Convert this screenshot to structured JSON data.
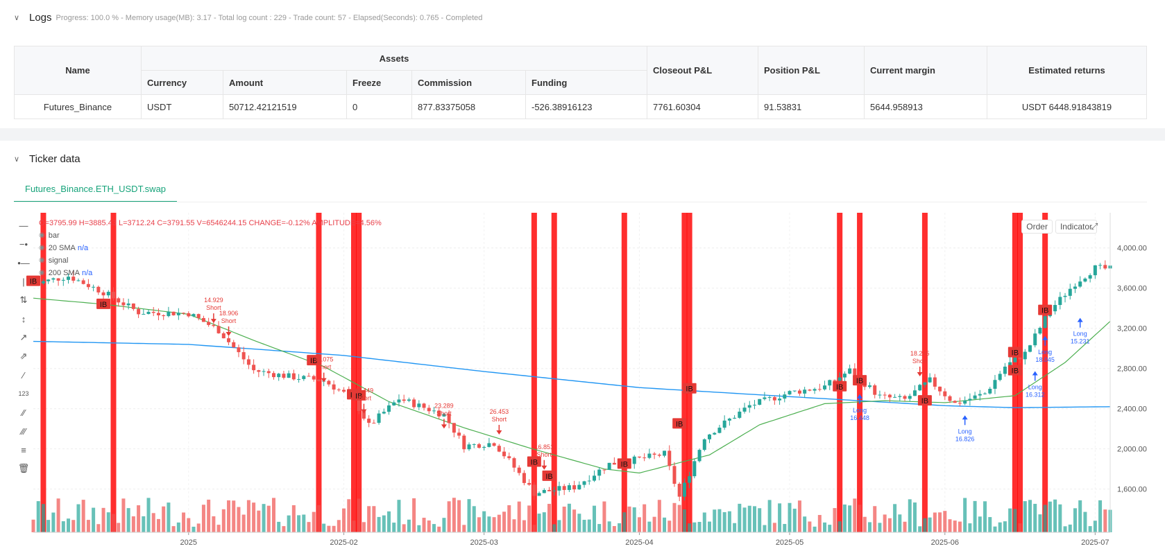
{
  "logs": {
    "title": "Logs",
    "status": "Progress: 100.0 %  -  Memory usage(MB): 3.17  -  Total log count : 229  -  Trade count:  57  -  Elapsed(Seconds): 0.765  -  Completed"
  },
  "assets_table": {
    "group_header": "Assets",
    "headers": {
      "name": "Name",
      "currency": "Currency",
      "amount": "Amount",
      "freeze": "Freeze",
      "commission": "Commission",
      "funding": "Funding",
      "closeout_pl": "Closeout P&L",
      "position_pl": "Position P&L",
      "current_margin": "Current margin",
      "estimated_returns": "Estimated returns"
    },
    "row": {
      "name": "Futures_Binance",
      "currency": "USDT",
      "amount": "50712.42121519",
      "freeze": "0",
      "commission": "877.83375058",
      "funding": "-526.38916123",
      "closeout_pl": "7761.60304",
      "position_pl": "91.53831",
      "current_margin": "5644.958913",
      "estimated_returns": "USDT 6448.91843819"
    }
  },
  "ticker": {
    "title": "Ticker data",
    "tab": "Futures_Binance.ETH_USDT.swap",
    "ohlc": "O=3795.99 H=3885.43 L=3712.24 C=3791.55 V=6546244.15 CHANGE=-0.12% AMPLITUDE=4.56%",
    "legend": [
      {
        "label": "bar",
        "value": ""
      },
      {
        "label": "20 SMA",
        "value": "n/a"
      },
      {
        "label": "signal",
        "value": ""
      },
      {
        "label": "200 SMA",
        "value": "n/a"
      }
    ],
    "buttons": {
      "order": "Order",
      "indicator": "Indicator"
    },
    "icons": [
      "crosshair-icon",
      "horizontal-line-icon",
      "horizontal-ray-icon",
      "vertical-line-icon",
      "vertical-ray-icon",
      "vertical-segment-icon",
      "trend-line-icon",
      "ray-icon",
      "segment-icon",
      "fib-icon",
      "parallel-channel-icon",
      "multi-channel-icon",
      "settings-lines-icon",
      "trash-icon"
    ]
  },
  "colors": {
    "up": "#26a69a",
    "down": "#ef5350",
    "sma20": "#4caf50",
    "sma200": "#2196f3",
    "signal": "#ff0000",
    "tab": "#16a37a"
  },
  "chart_data": {
    "type": "candlestick",
    "x_ticks": [
      "2025",
      "2025-02",
      "2025-03",
      "2025-04",
      "2025-05",
      "2025-06",
      "2025-07"
    ],
    "y_ticks": [
      "4,000.00",
      "3,600.00",
      "3,200.00",
      "2,800.00",
      "2,400.00",
      "2,000.00",
      "1,600.00"
    ],
    "ylim": [
      1170,
      4350
    ],
    "x_range": [
      "2024-12-01",
      "2025-07-04"
    ],
    "price_anchors": [
      [
        "2024-12-01",
        3640
      ],
      [
        "2024-12-08",
        3720
      ],
      [
        "2024-12-15",
        3560
      ],
      [
        "2024-12-22",
        3360
      ],
      [
        "2025-01-01",
        3350
      ],
      [
        "2025-01-07",
        3180
      ],
      [
        "2025-01-14",
        2780
      ],
      [
        "2025-01-21",
        2720
      ],
      [
        "2025-01-28",
        2680
      ],
      [
        "2025-02-03",
        2490
      ],
      [
        "2025-02-06",
        2230
      ],
      [
        "2025-02-12",
        2500
      ],
      [
        "2025-02-21",
        2340
      ],
      [
        "2025-02-25",
        2030
      ],
      [
        "2025-03-03",
        2060
      ],
      [
        "2025-03-06",
        1880
      ],
      [
        "2025-03-11",
        1560
      ],
      [
        "2025-03-19",
        1620
      ],
      [
        "2025-03-26",
        1850
      ],
      [
        "2025-04-01",
        1900
      ],
      [
        "2025-04-06",
        1950
      ],
      [
        "2025-04-09",
        1520
      ],
      [
        "2025-04-14",
        2120
      ],
      [
        "2025-04-23",
        2430
      ],
      [
        "2025-05-01",
        2560
      ],
      [
        "2025-05-08",
        2620
      ],
      [
        "2025-05-13",
        2780
      ],
      [
        "2025-05-19",
        2520
      ],
      [
        "2025-05-24",
        2490
      ],
      [
        "2025-05-29",
        2680
      ],
      [
        "2025-06-03",
        2450
      ],
      [
        "2025-06-09",
        2550
      ],
      [
        "2025-06-13",
        2820
      ],
      [
        "2025-06-17",
        2950
      ],
      [
        "2025-06-22",
        3380
      ],
      [
        "2025-06-27",
        3650
      ],
      [
        "2025-07-01",
        3800
      ],
      [
        "2025-07-04",
        3790
      ]
    ],
    "sma20_anchors": [
      [
        "2024-12-01",
        3500
      ],
      [
        "2024-12-15",
        3440
      ],
      [
        "2025-01-01",
        3340
      ],
      [
        "2025-01-14",
        3080
      ],
      [
        "2025-01-28",
        2820
      ],
      [
        "2025-02-10",
        2470
      ],
      [
        "2025-02-25",
        2210
      ],
      [
        "2025-03-10",
        2010
      ],
      [
        "2025-03-25",
        1800
      ],
      [
        "2025-04-01",
        1760
      ],
      [
        "2025-04-15",
        1940
      ],
      [
        "2025-04-25",
        2240
      ],
      [
        "2025-05-08",
        2450
      ],
      [
        "2025-05-20",
        2480
      ],
      [
        "2025-06-01",
        2460
      ],
      [
        "2025-06-15",
        2530
      ],
      [
        "2025-06-25",
        2860
      ],
      [
        "2025-07-04",
        3270
      ]
    ],
    "sma200_anchors": [
      [
        "2024-12-01",
        3070
      ],
      [
        "2025-01-01",
        3040
      ],
      [
        "2025-02-01",
        2930
      ],
      [
        "2025-03-01",
        2770
      ],
      [
        "2025-04-01",
        2610
      ],
      [
        "2025-05-01",
        2520
      ],
      [
        "2025-06-01",
        2430
      ],
      [
        "2025-06-15",
        2410
      ],
      [
        "2025-07-04",
        2420
      ]
    ],
    "signal_bars": [
      "2024-12-03",
      "2024-12-17",
      "2025-01-27",
      "2025-02-03",
      "2025-02-04",
      "2025-03-11",
      "2025-03-15",
      "2025-03-29",
      "2025-04-10",
      "2025-04-11",
      "2025-05-11",
      "2025-05-15",
      "2025-05-28",
      "2025-06-15",
      "2025-06-16",
      "2025-06-21"
    ],
    "ib_labels": [
      [
        "2024-12-01",
        3670
      ],
      [
        "2024-12-15",
        3440
      ],
      [
        "2025-01-26",
        2880
      ],
      [
        "2025-02-03",
        2540
      ],
      [
        "2025-02-04",
        2530
      ],
      [
        "2025-03-11",
        1870
      ],
      [
        "2025-03-14",
        1730
      ],
      [
        "2025-03-29",
        1850
      ],
      [
        "2025-04-09",
        2250
      ],
      [
        "2025-04-11",
        2600
      ],
      [
        "2025-05-11",
        2620
      ],
      [
        "2025-05-15",
        2680
      ],
      [
        "2025-05-28",
        2480
      ],
      [
        "2025-06-15",
        2780
      ],
      [
        "2025-06-15",
        2960
      ],
      [
        "2025-06-21",
        3380
      ]
    ],
    "trades": [
      {
        "side": "Short",
        "value": "14.929",
        "date": "2025-01-06",
        "price": 3280
      },
      {
        "side": "Short",
        "value": "18.906",
        "date": "2025-01-09",
        "price": 3150
      },
      {
        "side": "Short",
        "value": "15.075",
        "date": "2025-01-28",
        "price": 2690
      },
      {
        "side": "Short",
        "value": "23.449",
        "date": "2025-02-05",
        "price": 2380
      },
      {
        "side": "Short",
        "value": "23.289",
        "date": "2025-02-21",
        "price": 2230
      },
      {
        "side": "Short",
        "value": "26.453",
        "date": "2025-03-04",
        "price": 2170
      },
      {
        "side": "Short",
        "value": "16.851",
        "date": "2025-03-13",
        "price": 1820
      },
      {
        "side": "Short",
        "value": "18.245",
        "date": "2025-05-27",
        "price": 2750
      },
      {
        "side": "Long",
        "value": "16.448",
        "date": "2025-05-15",
        "price": 2530
      },
      {
        "side": "Long",
        "value": "16.826",
        "date": "2025-06-05",
        "price": 2320
      },
      {
        "side": "Long",
        "value": "16.312",
        "date": "2025-06-19",
        "price": 2760
      },
      {
        "side": "Long",
        "value": "18.045",
        "date": "2025-06-21",
        "price": 3110
      },
      {
        "side": "Long",
        "value": "15.231",
        "date": "2025-06-28",
        "price": 3290
      }
    ]
  }
}
